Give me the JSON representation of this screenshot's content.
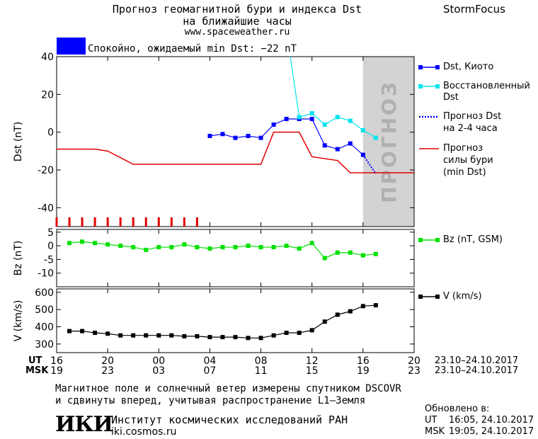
{
  "header": {
    "title_line1": "Прогноз геомагнитной бури и индекса Dst",
    "title_line2": "на ближайшие часы",
    "url": "www.spaceweather.ru",
    "brand": "StormFocus"
  },
  "status": {
    "text": "Спокойно, ожидаемый min Dst: −22 nT",
    "color": "#0000ff"
  },
  "forecast_zone_label": "ПРОГНОЗ",
  "legend": {
    "dst_kyoto": "Dst, Киото",
    "restored_1": "Восстановленный",
    "restored_2": "Dst",
    "forecast_1": "Прогноз Dst",
    "forecast_2": "на 2-4 часа",
    "storm_1": "Прогноз",
    "storm_2": "силы бури",
    "storm_3": "(min Dst)",
    "bz": "Bz (nT, GSM)",
    "v": "V (km/s)"
  },
  "chart_data": [
    {
      "type": "line",
      "ylabel": "Dst (nT)",
      "ylim": [
        -50,
        40
      ],
      "yticks": [
        40,
        20,
        0,
        -20,
        -40
      ],
      "x_unit": "hours UT from 23.10.2017 16:00",
      "xlim": [
        0,
        28
      ],
      "forecast_region": [
        24,
        28
      ],
      "series": [
        {
          "name": "Dst, Киото",
          "color": "#0000ff",
          "x": [
            12,
            13,
            14,
            15,
            16,
            17,
            18,
            19,
            20,
            21,
            22,
            23,
            24
          ],
          "y": [
            -2,
            -1,
            -3,
            -2,
            -3,
            4,
            7,
            7,
            7,
            -7,
            -9,
            -6,
            -12
          ]
        },
        {
          "name": "Восстановленный Dst",
          "color": "#00e5ee",
          "x": [
            18.3,
            19,
            20,
            21,
            22,
            23,
            24,
            25
          ],
          "y": [
            40,
            8,
            10,
            4,
            8,
            6,
            1,
            -3
          ]
        },
        {
          "name": "Прогноз Dst на 2-4 часа",
          "color": "#0000ff",
          "x": [
            24,
            25
          ],
          "y": [
            -12,
            -22
          ]
        },
        {
          "name": "Прогноз силы бури (min Dst)",
          "color": "#e00000",
          "x": [
            0,
            3,
            4,
            6,
            28,
            16,
            17,
            19,
            20,
            22,
            24,
            28
          ],
          "y": [
            -9,
            -9,
            -10,
            -17,
            -17,
            -17,
            0,
            0,
            -13,
            -15,
            -22,
            -22
          ]
        }
      ],
      "red_ticks_x": [
        0,
        1,
        2,
        3,
        4,
        5,
        6,
        7,
        8,
        9,
        10,
        11
      ]
    },
    {
      "type": "line",
      "ylabel": "Bz (nT)",
      "ylim": [
        -15,
        6
      ],
      "yticks": [
        5,
        0,
        -5,
        -10
      ],
      "series": [
        {
          "name": "Bz (nT, GSM)",
          "color": "#00e000",
          "x": [
            1,
            2,
            3,
            4,
            5,
            6,
            7,
            8,
            9,
            10,
            11,
            12,
            13,
            14,
            15,
            16,
            17,
            18,
            19,
            20,
            21,
            22,
            23,
            24,
            25
          ],
          "y": [
            1,
            1.5,
            1,
            0.5,
            0,
            -0.5,
            -1.5,
            -0.5,
            -0.5,
            0.5,
            -0.5,
            -1,
            -0.5,
            -0.5,
            0,
            -0.5,
            -0.5,
            0,
            -1,
            1,
            -4.5,
            -2.5,
            -2.5,
            -3.5,
            -3
          ]
        }
      ]
    },
    {
      "type": "line",
      "ylabel": "V (km/s)",
      "ylim": [
        250,
        620
      ],
      "yticks": [
        600,
        500,
        400,
        300
      ],
      "series": [
        {
          "name": "V (km/s)",
          "color": "#000000",
          "x": [
            1,
            2,
            3,
            4,
            5,
            6,
            7,
            8,
            9,
            10,
            11,
            12,
            13,
            14,
            15,
            16,
            17,
            18,
            19,
            20,
            21,
            22,
            23,
            24,
            25
          ],
          "y": [
            375,
            375,
            365,
            360,
            350,
            350,
            350,
            350,
            350,
            345,
            345,
            340,
            340,
            340,
            335,
            335,
            350,
            365,
            365,
            380,
            430,
            470,
            490,
            520,
            525
          ]
        }
      ]
    }
  ],
  "xaxis": {
    "ut_label": "UT",
    "msk_label": "MSK",
    "ut_ticks": [
      "16",
      "20",
      "00",
      "04",
      "08",
      "12",
      "16",
      "20"
    ],
    "msk_ticks": [
      "19",
      "23",
      "03",
      "07",
      "11",
      "15",
      "19",
      "23"
    ],
    "tick_x": [
      0,
      4,
      8,
      12,
      16,
      20,
      24,
      28
    ],
    "date_range_ut": "23.10–24.10.2017",
    "date_range_msk": "23.10–24.10.2017"
  },
  "footer": {
    "note_line1": "Магнитное поле и солнечный ветер измерены спутником DSCOVR",
    "note_line2": "и сдвинуты вперед, учитывая распространение L1–Земля",
    "logo_text": "ИКИ",
    "institute": "Институт космических исследований РАН",
    "institute_url": "iki.cosmos.ru",
    "updated_label": "Обновлено в:",
    "updated_ut_label": "UT",
    "updated_ut": "16:05, 24.10.2017",
    "updated_msk_label": "MSK",
    "updated_msk": "19:05, 24.10.2017"
  }
}
